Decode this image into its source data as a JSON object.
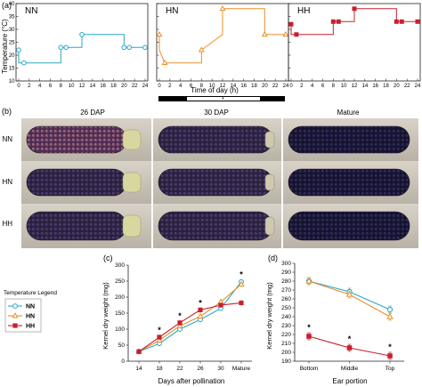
{
  "panel_a": {
    "label": "(a)",
    "ylabel": "Temperature (°C)",
    "xlabel": "Time of day (h)",
    "titles": [
      "NN",
      "HN",
      "HH"
    ],
    "star": "*",
    "colors": {
      "NN": "#27a9c9",
      "HN": "#e8902a",
      "HH": "#c8202e"
    }
  },
  "panel_b": {
    "label": "(b)",
    "columns": [
      "26 DAP",
      "30 DAP",
      "Mature"
    ],
    "rows": [
      "NN",
      "HN",
      "HH"
    ]
  },
  "panel_c": {
    "label": "(c)",
    "ylabel": "Kernel dry weight (mg)",
    "xlabel": "Days after pollination",
    "star": "*"
  },
  "panel_d": {
    "label": "(d)",
    "ylabel": "Kernel dry weight (mg)",
    "xlabel": "Ear portion",
    "star": "*"
  },
  "legend": {
    "title": "Temperature Legend",
    "items": [
      "NN",
      "HN",
      "HH"
    ]
  },
  "chart_data": [
    {
      "type": "line",
      "title": "NN",
      "xlabel": "Time of day (h)",
      "ylabel": "Temperature (°C)",
      "x_ticks": [
        0,
        2,
        4,
        6,
        8,
        10,
        12,
        14,
        16,
        18,
        20,
        22,
        24
      ],
      "y_ticks": [
        10,
        15,
        20,
        25,
        30,
        35,
        40
      ],
      "xlim": [
        0,
        24
      ],
      "ylim": [
        10,
        40
      ],
      "series": [
        {
          "x": [
            0,
            0,
            1,
            8,
            8,
            9,
            12,
            12,
            20,
            20,
            21,
            24
          ],
          "y": [
            22,
            17,
            17,
            17,
            23,
            23,
            23,
            28,
            28,
            23,
            23,
            23
          ],
          "markers": [
            0,
            1,
            8,
            9,
            12,
            20,
            21,
            24
          ]
        }
      ]
    },
    {
      "type": "line",
      "title": "HN",
      "xlabel": "Time of day (h)",
      "x_ticks": [
        0,
        2,
        4,
        6,
        8,
        10,
        12,
        14,
        16,
        18,
        20,
        22,
        24
      ],
      "xlim": [
        0,
        24
      ],
      "ylim": [
        10,
        40
      ],
      "series": [
        {
          "x": [
            0,
            0,
            1,
            8,
            8,
            12,
            12,
            20,
            20,
            24
          ],
          "y": [
            28,
            22,
            17,
            17,
            22,
            28,
            38,
            38,
            28,
            28
          ],
          "markers": [
            0,
            1,
            8,
            12,
            20,
            24
          ]
        }
      ]
    },
    {
      "type": "line",
      "title": "HH",
      "xlabel": "Time of day (h)",
      "x_ticks": [
        0,
        2,
        4,
        6,
        8,
        10,
        12,
        14,
        16,
        18,
        20,
        22,
        24
      ],
      "xlim": [
        0,
        24
      ],
      "ylim": [
        10,
        40
      ],
      "series": [
        {
          "x": [
            0,
            0,
            1,
            8,
            8,
            9,
            12,
            12,
            20,
            20,
            21,
            24
          ],
          "y": [
            32,
            28,
            28,
            28,
            33,
            33,
            33,
            38,
            38,
            33,
            33,
            33
          ],
          "markers": [
            0,
            1,
            8,
            9,
            12,
            20,
            21,
            24
          ]
        }
      ]
    },
    {
      "type": "line",
      "xlabel": "Days after pollination",
      "ylabel": "Kernel dry weight (mg)",
      "categories": [
        "14",
        "18",
        "22",
        "26",
        "30",
        "Mature"
      ],
      "y_ticks": [
        0,
        50,
        100,
        150,
        200,
        250,
        300
      ],
      "ylim": [
        0,
        300
      ],
      "series": [
        {
          "name": "NN",
          "values": [
            30,
            55,
            100,
            130,
            165,
            248
          ]
        },
        {
          "name": "HN",
          "values": [
            30,
            65,
            110,
            140,
            185,
            240
          ]
        },
        {
          "name": "HH",
          "values": [
            30,
            75,
            120,
            160,
            175,
            182
          ]
        }
      ],
      "stars_at": [
        "18",
        "22",
        "26",
        "Mature"
      ]
    },
    {
      "type": "line",
      "xlabel": "Ear portion",
      "ylabel": "Kernel dry weight (mg)",
      "categories": [
        "Bottom",
        "Middle",
        "Top"
      ],
      "y_ticks": [
        190,
        200,
        210,
        220,
        230,
        240,
        250,
        260,
        270,
        280,
        290,
        300
      ],
      "ylim": [
        190,
        300
      ],
      "series": [
        {
          "name": "NN",
          "values": [
            280,
            268,
            248
          ]
        },
        {
          "name": "HN",
          "values": [
            280,
            265,
            240
          ]
        },
        {
          "name": "HH",
          "values": [
            218,
            205,
            196
          ]
        }
      ],
      "stars_at": [
        "Bottom",
        "Middle",
        "Top"
      ]
    }
  ]
}
